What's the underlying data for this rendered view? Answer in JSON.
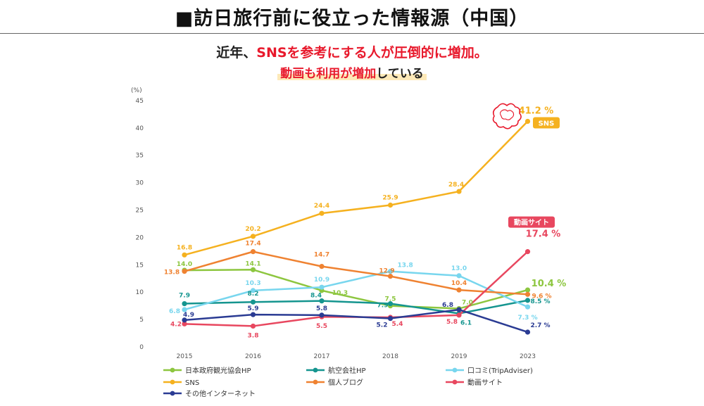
{
  "header": {
    "title": "■訪日旅行前に役立った情報源（中国）",
    "headline_prefix": "近年、",
    "headline_red": "SNSを参考にする人が圧倒的に増加。",
    "subhead_red": "動画も利用が増加",
    "subhead_rest": "している"
  },
  "chart_data": {
    "type": "line",
    "y_unit_label": "(%)",
    "x": [
      "2015",
      "2016",
      "2017",
      "2018",
      "2019",
      "2023"
    ],
    "ylim": [
      0,
      45
    ],
    "yticks": [
      0,
      5,
      10,
      15,
      20,
      25,
      30,
      35,
      40,
      45
    ],
    "grid": false,
    "legend_position": "bottom",
    "series": [
      {
        "name": "日本政府観光協会HP",
        "color": "#8dc63f",
        "values": [
          14.0,
          14.1,
          10.3,
          7.5,
          7.0,
          10.4
        ],
        "labels": [
          "14.0",
          "14.1",
          "10.3",
          "7.5",
          "7.0",
          "10.4 %"
        ]
      },
      {
        "name": "航空会社HP",
        "color": "#15958f",
        "values": [
          7.9,
          8.2,
          8.4,
          7.9,
          6.1,
          8.5
        ],
        "labels": [
          "7.9",
          "8.2",
          "8.4",
          "7.9",
          "6.1",
          "8.5 %"
        ]
      },
      {
        "name": "口コミ(TripAdviser)",
        "color": "#78d6ee",
        "values": [
          6.8,
          10.3,
          10.9,
          13.8,
          13.0,
          7.3
        ],
        "labels": [
          "6.8",
          "10.3",
          "10.9",
          "13.8",
          "13.0",
          "7.3 %"
        ]
      },
      {
        "name": "SNS",
        "color": "#f5b11f",
        "values": [
          16.8,
          20.2,
          24.4,
          25.9,
          28.4,
          41.2
        ],
        "labels": [
          "16.8",
          "20.2",
          "24.4",
          "25.9",
          "28.4",
          "41.2 %"
        ]
      },
      {
        "name": "個人ブログ",
        "color": "#ef8231",
        "values": [
          13.8,
          17.4,
          14.7,
          12.9,
          10.4,
          9.6
        ],
        "labels": [
          "13.8",
          "17.4",
          "14.7",
          "12.9",
          "10.4",
          "9.6 %"
        ]
      },
      {
        "name": "動画サイト",
        "color": "#e8475f",
        "values": [
          4.2,
          3.8,
          5.5,
          5.4,
          5.8,
          17.4
        ],
        "labels": [
          "4.2",
          "3.8",
          "5.5",
          "5.4",
          "5.8",
          "17.4 %"
        ]
      },
      {
        "name": "その他インターネット",
        "color": "#2a3b93",
        "values": [
          4.9,
          5.9,
          5.8,
          5.2,
          6.8,
          2.7
        ],
        "labels": [
          "4.9",
          "5.9",
          "5.8",
          "5.2",
          "6.8",
          "2.7 %"
        ]
      }
    ],
    "annotations": [
      {
        "text": "SNS",
        "series": "SNS",
        "color": "#f5b11f"
      },
      {
        "text": "動画サイト",
        "series": "動画サイト",
        "color": "#e8475f"
      }
    ]
  }
}
